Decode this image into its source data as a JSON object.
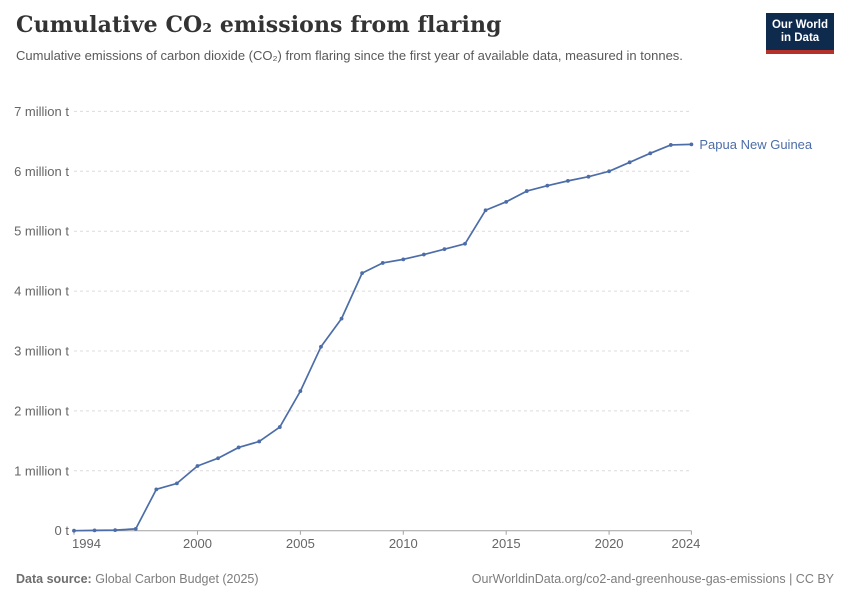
{
  "header": {
    "title": "Cumulative CO₂ emissions from flaring",
    "subtitle": "Cumulative emissions of carbon dioxide (CO₂) from flaring since the first year of available data, measured in tonnes."
  },
  "logo": {
    "line1": "Our World",
    "line2": "in Data",
    "bg_color": "#0e2a4d",
    "accent_color": "#b5322a"
  },
  "chart_data": {
    "type": "line",
    "title": "Cumulative CO₂ emissions from flaring",
    "unit": "tonnes",
    "xlim": [
      1994,
      2024
    ],
    "ylim": [
      0,
      7
    ],
    "x_ticks": [
      1994,
      2000,
      2005,
      2010,
      2015,
      2020,
      2024
    ],
    "y_ticks": [
      {
        "value": 0,
        "label": "0 t"
      },
      {
        "value": 1,
        "label": "1 million t"
      },
      {
        "value": 2,
        "label": "2 million t"
      },
      {
        "value": 3,
        "label": "3 million t"
      },
      {
        "value": 4,
        "label": "4 million t"
      },
      {
        "value": 5,
        "label": "5 million t"
      },
      {
        "value": 6,
        "label": "6 million t"
      },
      {
        "value": 7,
        "label": "7 million t"
      }
    ],
    "x": [
      1994,
      1995,
      1996,
      1997,
      1998,
      1999,
      2000,
      2001,
      2002,
      2003,
      2004,
      2005,
      2006,
      2007,
      2008,
      2009,
      2010,
      2011,
      2012,
      2013,
      2014,
      2015,
      2016,
      2017,
      2018,
      2019,
      2020,
      2021,
      2022,
      2023,
      2024
    ],
    "series": [
      {
        "name": "Papua New Guinea",
        "color": "#4c6da8",
        "values_million_t": [
          0,
          0.005,
          0.01,
          0.03,
          0.69,
          0.79,
          1.08,
          1.21,
          1.39,
          1.49,
          1.73,
          2.33,
          3.07,
          3.54,
          4.3,
          4.47,
          4.53,
          4.61,
          4.7,
          4.79,
          5.35,
          5.49,
          5.67,
          5.76,
          5.84,
          5.91,
          6.0,
          6.15,
          6.3,
          6.44,
          6.45
        ]
      }
    ],
    "grid": "horizontal-dashed",
    "legend": "inline-end-label",
    "colors": {
      "axis_label": "#666666",
      "gridline": "#dcdcdc",
      "axis_line": "#a1a1a1"
    }
  },
  "footer": {
    "source_label": "Data source:",
    "source_value": "Global Carbon Budget (2025)",
    "link": "OurWorldinData.org/co2-and-greenhouse-gas-emissions | CC BY"
  }
}
